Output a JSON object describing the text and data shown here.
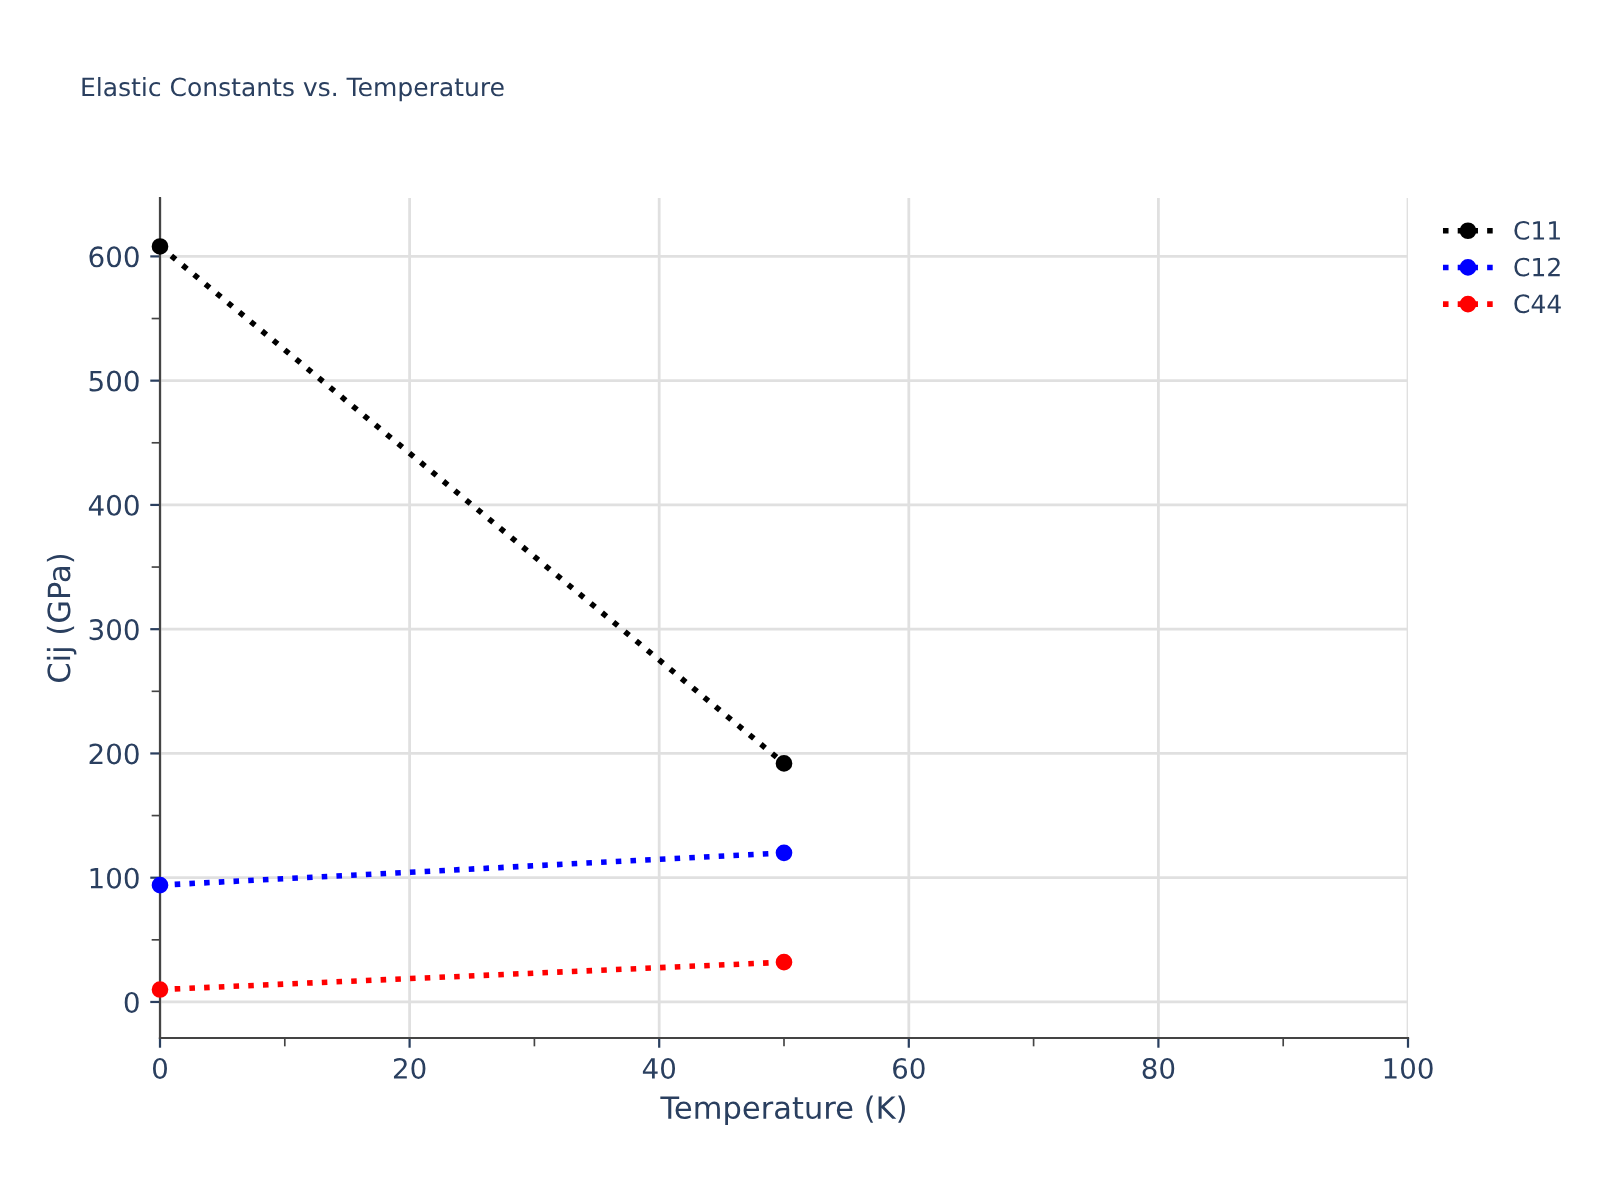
{
  "chart_data": {
    "type": "line",
    "title": "Elastic Constants vs. Temperature",
    "xlabel": "Temperature (K)",
    "ylabel": "Cij (GPa)",
    "x": [
      0,
      50
    ],
    "series": [
      {
        "name": "C11",
        "color": "#000000",
        "values": [
          608,
          192
        ]
      },
      {
        "name": "C12",
        "color": "#0000ff",
        "values": [
          94,
          120
        ]
      },
      {
        "name": "C44",
        "color": "#ff0000",
        "values": [
          10,
          32
        ]
      }
    ],
    "xlim": [
      0,
      100
    ],
    "xticks": [
      0,
      20,
      40,
      60,
      80,
      100
    ],
    "ylim": [
      -29,
      647
    ],
    "yticks": [
      0,
      100,
      200,
      300,
      400,
      500,
      600
    ],
    "grid": true,
    "legend": "top right",
    "marker": "circle",
    "line_style": "dotted"
  }
}
